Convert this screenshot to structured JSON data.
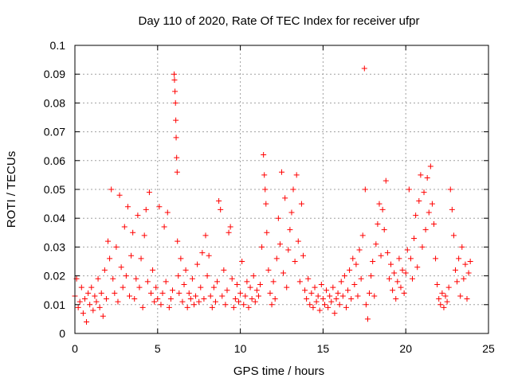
{
  "chart_data": {
    "type": "scatter",
    "title": "Day 110 of 2020, Rate Of TEC Index for receiver ufpr",
    "xlabel": "GPS time / hours",
    "ylabel": "ROTI / TECUs",
    "xlim": [
      0,
      25
    ],
    "ylim": [
      0,
      0.1
    ],
    "x_ticks": [
      "0",
      "5",
      "10",
      "15",
      "20",
      "25"
    ],
    "y_ticks": [
      "0",
      "0.01",
      "0.02",
      "0.03",
      "0.04",
      "0.05",
      "0.06",
      "0.07",
      "0.08",
      "0.09",
      "0.1"
    ],
    "x_tick_values": [
      0,
      5,
      10,
      15,
      20,
      25
    ],
    "y_tick_values": [
      0,
      0.01,
      0.02,
      0.03,
      0.04,
      0.05,
      0.06,
      0.07,
      0.08,
      0.09,
      0.1
    ],
    "grid": true,
    "marker": "+",
    "color": "#ff0000",
    "series": [
      {
        "points": [
          [
            0.0,
            0.013
          ],
          [
            0.1,
            0.019
          ],
          [
            0.2,
            0.009
          ],
          [
            0.3,
            0.011
          ],
          [
            0.4,
            0.016
          ],
          [
            0.5,
            0.007
          ],
          [
            0.6,
            0.012
          ],
          [
            0.7,
            0.004
          ],
          [
            0.8,
            0.014
          ],
          [
            0.9,
            0.01
          ],
          [
            1.0,
            0.016
          ],
          [
            1.1,
            0.008
          ],
          [
            1.2,
            0.013
          ],
          [
            1.3,
            0.011
          ],
          [
            1.4,
            0.019
          ],
          [
            1.5,
            0.009
          ],
          [
            1.6,
            0.014
          ],
          [
            1.7,
            0.006
          ],
          [
            1.8,
            0.022
          ],
          [
            1.9,
            0.012
          ],
          [
            2.0,
            0.032
          ],
          [
            2.1,
            0.026
          ],
          [
            2.2,
            0.05
          ],
          [
            2.3,
            0.019
          ],
          [
            2.4,
            0.014
          ],
          [
            2.5,
            0.03
          ],
          [
            2.6,
            0.011
          ],
          [
            2.7,
            0.048
          ],
          [
            2.8,
            0.023
          ],
          [
            2.9,
            0.016
          ],
          [
            3.0,
            0.037
          ],
          [
            3.1,
            0.02
          ],
          [
            3.2,
            0.044
          ],
          [
            3.3,
            0.013
          ],
          [
            3.4,
            0.027
          ],
          [
            3.5,
            0.035
          ],
          [
            3.6,
            0.012
          ],
          [
            3.7,
            0.019
          ],
          [
            3.8,
            0.041
          ],
          [
            3.9,
            0.016
          ],
          [
            4.0,
            0.026
          ],
          [
            4.1,
            0.009
          ],
          [
            4.2,
            0.034
          ],
          [
            4.3,
            0.043
          ],
          [
            4.4,
            0.018
          ],
          [
            4.5,
            0.049
          ],
          [
            4.6,
            0.014
          ],
          [
            4.7,
            0.022
          ],
          [
            4.8,
            0.011
          ],
          [
            4.9,
            0.016
          ],
          [
            5.0,
            0.012
          ],
          [
            5.1,
            0.044
          ],
          [
            5.2,
            0.01
          ],
          [
            5.3,
            0.014
          ],
          [
            5.4,
            0.037
          ],
          [
            5.5,
            0.018
          ],
          [
            5.6,
            0.042
          ],
          [
            5.7,
            0.009
          ],
          [
            5.8,
            0.012
          ],
          [
            5.9,
            0.015
          ],
          [
            6.0,
            0.09
          ],
          [
            6.02,
            0.088
          ],
          [
            6.05,
            0.084
          ],
          [
            6.08,
            0.08
          ],
          [
            6.1,
            0.074
          ],
          [
            6.12,
            0.068
          ],
          [
            6.15,
            0.061
          ],
          [
            6.18,
            0.056
          ],
          [
            6.2,
            0.032
          ],
          [
            6.25,
            0.02
          ],
          [
            6.3,
            0.014
          ],
          [
            6.4,
            0.026
          ],
          [
            6.5,
            0.011
          ],
          [
            6.6,
            0.017
          ],
          [
            6.7,
            0.022
          ],
          [
            6.8,
            0.009
          ],
          [
            6.9,
            0.014
          ],
          [
            7.0,
            0.012
          ],
          [
            7.1,
            0.019
          ],
          [
            7.2,
            0.01
          ],
          [
            7.3,
            0.013
          ],
          [
            7.4,
            0.024
          ],
          [
            7.5,
            0.011
          ],
          [
            7.6,
            0.016
          ],
          [
            7.7,
            0.028
          ],
          [
            7.8,
            0.012
          ],
          [
            7.9,
            0.034
          ],
          [
            8.0,
            0.02
          ],
          [
            8.1,
            0.027
          ],
          [
            8.2,
            0.013
          ],
          [
            8.3,
            0.009
          ],
          [
            8.4,
            0.016
          ],
          [
            8.5,
            0.011
          ],
          [
            8.6,
            0.018
          ],
          [
            8.7,
            0.046
          ],
          [
            8.8,
            0.043
          ],
          [
            8.9,
            0.013
          ],
          [
            9.0,
            0.022
          ],
          [
            9.1,
            0.01
          ],
          [
            9.2,
            0.015
          ],
          [
            9.3,
            0.035
          ],
          [
            9.4,
            0.037
          ],
          [
            9.5,
            0.019
          ],
          [
            9.6,
            0.009
          ],
          [
            9.7,
            0.012
          ],
          [
            9.8,
            0.017
          ],
          [
            9.9,
            0.011
          ],
          [
            10.0,
            0.014
          ],
          [
            10.1,
            0.025
          ],
          [
            10.2,
            0.01
          ],
          [
            10.3,
            0.013
          ],
          [
            10.4,
            0.018
          ],
          [
            10.5,
            0.009
          ],
          [
            10.6,
            0.016
          ],
          [
            10.7,
            0.012
          ],
          [
            10.8,
            0.02
          ],
          [
            10.9,
            0.011
          ],
          [
            11.0,
            0.015
          ],
          [
            11.1,
            0.013
          ],
          [
            11.2,
            0.017
          ],
          [
            11.3,
            0.03
          ],
          [
            11.4,
            0.062
          ],
          [
            11.45,
            0.055
          ],
          [
            11.5,
            0.05
          ],
          [
            11.55,
            0.045
          ],
          [
            11.6,
            0.035
          ],
          [
            11.7,
            0.022
          ],
          [
            11.8,
            0.014
          ],
          [
            11.9,
            0.01
          ],
          [
            12.0,
            0.018
          ],
          [
            12.1,
            0.012
          ],
          [
            12.2,
            0.026
          ],
          [
            12.3,
            0.04
          ],
          [
            12.4,
            0.031
          ],
          [
            12.5,
            0.056
          ],
          [
            12.6,
            0.021
          ],
          [
            12.7,
            0.047
          ],
          [
            12.8,
            0.016
          ],
          [
            12.9,
            0.029
          ],
          [
            13.0,
            0.036
          ],
          [
            13.1,
            0.042
          ],
          [
            13.2,
            0.05
          ],
          [
            13.3,
            0.025
          ],
          [
            13.4,
            0.055
          ],
          [
            13.5,
            0.032
          ],
          [
            13.6,
            0.018
          ],
          [
            13.7,
            0.045
          ],
          [
            13.8,
            0.027
          ],
          [
            13.9,
            0.015
          ],
          [
            14.0,
            0.012
          ],
          [
            14.1,
            0.019
          ],
          [
            14.2,
            0.01
          ],
          [
            14.3,
            0.014
          ],
          [
            14.4,
            0.009
          ],
          [
            14.5,
            0.016
          ],
          [
            14.6,
            0.011
          ],
          [
            14.7,
            0.013
          ],
          [
            14.8,
            0.008
          ],
          [
            14.9,
            0.017
          ],
          [
            15.0,
            0.012
          ],
          [
            15.1,
            0.01
          ],
          [
            15.2,
            0.015
          ],
          [
            15.3,
            0.009
          ],
          [
            15.4,
            0.013
          ],
          [
            15.5,
            0.011
          ],
          [
            15.6,
            0.016
          ],
          [
            15.7,
            0.007
          ],
          [
            15.8,
            0.012
          ],
          [
            15.9,
            0.014
          ],
          [
            16.0,
            0.01
          ],
          [
            16.1,
            0.018
          ],
          [
            16.2,
            0.013
          ],
          [
            16.3,
            0.02
          ],
          [
            16.4,
            0.009
          ],
          [
            16.5,
            0.015
          ],
          [
            16.6,
            0.022
          ],
          [
            16.7,
            0.012
          ],
          [
            16.8,
            0.026
          ],
          [
            16.9,
            0.017
          ],
          [
            17.0,
            0.024
          ],
          [
            17.1,
            0.013
          ],
          [
            17.2,
            0.029
          ],
          [
            17.3,
            0.019
          ],
          [
            17.4,
            0.034
          ],
          [
            17.5,
            0.092
          ],
          [
            17.55,
            0.05
          ],
          [
            17.6,
            0.01
          ],
          [
            17.7,
            0.005
          ],
          [
            17.8,
            0.014
          ],
          [
            17.9,
            0.02
          ],
          [
            18.0,
            0.025
          ],
          [
            18.1,
            0.013
          ],
          [
            18.2,
            0.031
          ],
          [
            18.3,
            0.038
          ],
          [
            18.4,
            0.045
          ],
          [
            18.5,
            0.027
          ],
          [
            18.6,
            0.043
          ],
          [
            18.7,
            0.036
          ],
          [
            18.8,
            0.053
          ],
          [
            18.9,
            0.028
          ],
          [
            19.0,
            0.019
          ],
          [
            19.1,
            0.024
          ],
          [
            19.2,
            0.015
          ],
          [
            19.3,
            0.021
          ],
          [
            19.4,
            0.012
          ],
          [
            19.5,
            0.018
          ],
          [
            19.6,
            0.026
          ],
          [
            19.7,
            0.016
          ],
          [
            19.8,
            0.022
          ],
          [
            19.9,
            0.014
          ],
          [
            20.0,
            0.021
          ],
          [
            20.1,
            0.029
          ],
          [
            20.2,
            0.05
          ],
          [
            20.3,
            0.026
          ],
          [
            20.4,
            0.019
          ],
          [
            20.5,
            0.033
          ],
          [
            20.6,
            0.041
          ],
          [
            20.7,
            0.023
          ],
          [
            20.8,
            0.046
          ],
          [
            20.9,
            0.055
          ],
          [
            21.0,
            0.03
          ],
          [
            21.1,
            0.049
          ],
          [
            21.2,
            0.036
          ],
          [
            21.3,
            0.054
          ],
          [
            21.4,
            0.042
          ],
          [
            21.5,
            0.058
          ],
          [
            21.6,
            0.045
          ],
          [
            21.7,
            0.038
          ],
          [
            21.8,
            0.026
          ],
          [
            21.9,
            0.017
          ],
          [
            22.0,
            0.012
          ],
          [
            22.1,
            0.01
          ],
          [
            22.2,
            0.014
          ],
          [
            22.3,
            0.009
          ],
          [
            22.4,
            0.013
          ],
          [
            22.5,
            0.011
          ],
          [
            22.6,
            0.016
          ],
          [
            22.7,
            0.05
          ],
          [
            22.8,
            0.043
          ],
          [
            22.9,
            0.034
          ],
          [
            23.0,
            0.022
          ],
          [
            23.1,
            0.018
          ],
          [
            23.2,
            0.026
          ],
          [
            23.3,
            0.013
          ],
          [
            23.4,
            0.03
          ],
          [
            23.5,
            0.019
          ],
          [
            23.6,
            0.024
          ],
          [
            23.7,
            0.012
          ],
          [
            23.8,
            0.021
          ],
          [
            23.9,
            0.025
          ]
        ]
      }
    ]
  }
}
